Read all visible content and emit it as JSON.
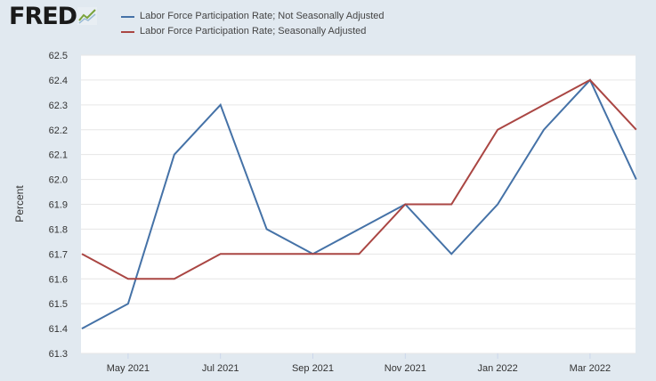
{
  "header": {
    "logo_text": "FRED",
    "logo_mark_icon": "line-chart-icon",
    "legend": [
      {
        "label": "Labor Force Participation Rate; Not Seasonally Adjusted",
        "color": "#4572a7"
      },
      {
        "label": "Labor Force Participation Rate; Seasonally Adjusted",
        "color": "#aa4643"
      }
    ]
  },
  "chart_data": {
    "type": "line",
    "xlabel": "",
    "ylabel": "Percent",
    "ylim": [
      61.3,
      62.5
    ],
    "yticks": [
      "61.3",
      "61.4",
      "61.5",
      "61.6",
      "61.7",
      "61.8",
      "61.9",
      "62.0",
      "62.1",
      "62.2",
      "62.3",
      "62.4",
      "62.5"
    ],
    "x": [
      "2021-04",
      "2021-05",
      "2021-06",
      "2021-07",
      "2021-08",
      "2021-09",
      "2021-10",
      "2021-11",
      "2021-12",
      "2022-01",
      "2022-02",
      "2022-03",
      "2022-04"
    ],
    "xticks": [
      {
        "at": "2021-05",
        "label": "May 2021"
      },
      {
        "at": "2021-07",
        "label": "Jul 2021"
      },
      {
        "at": "2021-09",
        "label": "Sep 2021"
      },
      {
        "at": "2021-11",
        "label": "Nov 2021"
      },
      {
        "at": "2022-01",
        "label": "Jan 2022"
      },
      {
        "at": "2022-03",
        "label": "Mar 2022"
      }
    ],
    "series": [
      {
        "name": "Labor Force Participation Rate; Not Seasonally Adjusted",
        "color": "#4572a7",
        "values": [
          61.4,
          61.5,
          62.1,
          62.3,
          61.8,
          61.7,
          61.8,
          61.9,
          61.7,
          61.9,
          62.2,
          62.4,
          62.0
        ]
      },
      {
        "name": "Labor Force Participation Rate; Seasonally Adjusted",
        "color": "#aa4643",
        "values": [
          61.7,
          61.6,
          61.6,
          61.7,
          61.7,
          61.7,
          61.7,
          61.9,
          61.9,
          62.2,
          62.3,
          62.4,
          62.2
        ]
      }
    ],
    "grid": "horizontal"
  }
}
